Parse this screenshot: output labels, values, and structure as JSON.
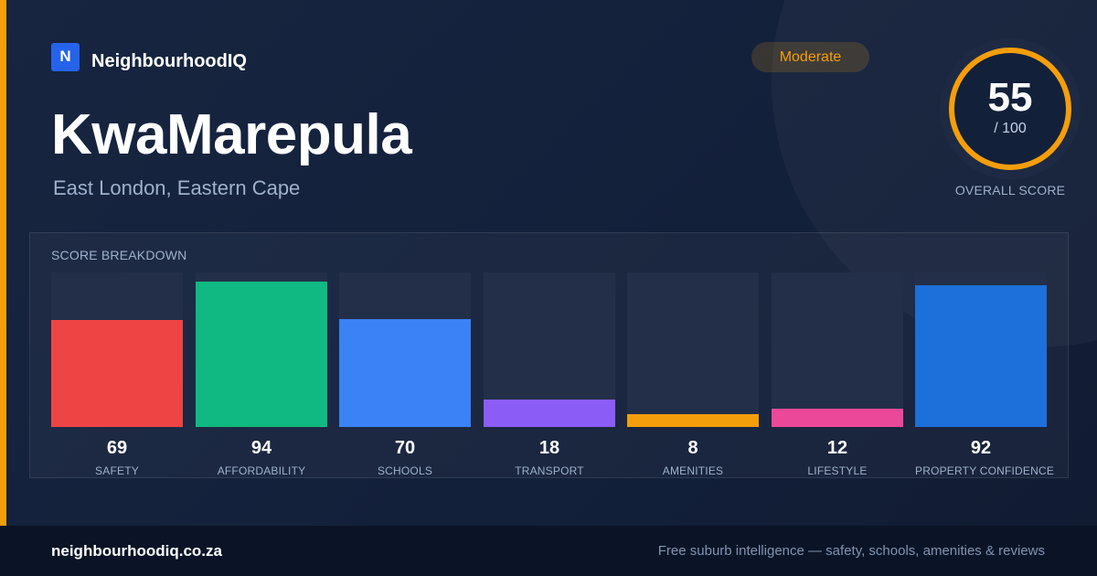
{
  "brand": {
    "logo_letter": "N",
    "name": "NeighbourhoodIQ"
  },
  "suburb": {
    "name": "KwaMarepula",
    "location": "East London, Eastern Cape"
  },
  "rating_badge": "Moderate",
  "overall_score": {
    "value": "55",
    "max_label": "/ 100",
    "caption": "OVERALL SCORE",
    "fraction": 0.55
  },
  "colors": {
    "accent": "#f59e0b",
    "ring_track": "#26324b",
    "ring_progress": "#f59e0b"
  },
  "chart_data": {
    "type": "bar",
    "title": "SCORE BREAKDOWN",
    "ylim": [
      0,
      100
    ],
    "categories": [
      "SAFETY",
      "AFFORDABILITY",
      "SCHOOLS",
      "TRANSPORT",
      "AMENITIES",
      "LIFESTYLE",
      "PROPERTY CONFIDENCE"
    ],
    "values": [
      69,
      94,
      70,
      18,
      8,
      12,
      92
    ],
    "colors": [
      "#ef4444",
      "#10b981",
      "#3b82f6",
      "#8b5cf6",
      "#f59e0b",
      "#ec4899",
      "#1d6fd9"
    ],
    "grid": false,
    "legend": "none"
  },
  "footer": {
    "url": "neighbourhoodiq.co.za",
    "tagline": "Free suburb intelligence — safety, schools, amenities & reviews"
  }
}
